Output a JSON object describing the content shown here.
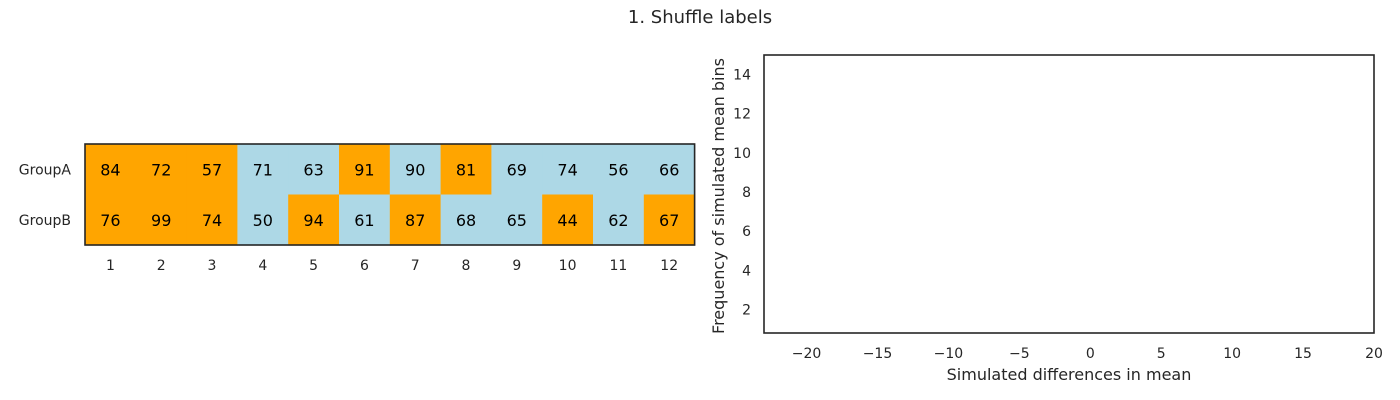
{
  "title": "1. Shuffle labels",
  "colors": {
    "orange": "#ffa500",
    "lightblue": "#add8e6",
    "frame": "#262626",
    "text": "#262626"
  },
  "chart_data": [
    {
      "type": "table",
      "rows": [
        "GroupA",
        "GroupB"
      ],
      "columns": [
        "1",
        "2",
        "3",
        "4",
        "5",
        "6",
        "7",
        "8",
        "9",
        "10",
        "11",
        "12"
      ],
      "values": [
        [
          84,
          72,
          57,
          71,
          63,
          91,
          90,
          81,
          69,
          74,
          56,
          66
        ],
        [
          76,
          99,
          74,
          50,
          94,
          61,
          87,
          68,
          65,
          44,
          62,
          67
        ]
      ],
      "cell_colors": [
        [
          "orange",
          "orange",
          "orange",
          "lightblue",
          "lightblue",
          "orange",
          "lightblue",
          "orange",
          "lightblue",
          "lightblue",
          "lightblue",
          "lightblue"
        ],
        [
          "orange",
          "orange",
          "orange",
          "lightblue",
          "orange",
          "lightblue",
          "orange",
          "lightblue",
          "lightblue",
          "orange",
          "lightblue",
          "orange"
        ]
      ]
    },
    {
      "type": "bar",
      "xlabel": "Simulated differences in mean",
      "ylabel": "Frequency of simulated mean bins",
      "xlim": [
        -23,
        20
      ],
      "ylim": [
        0.8,
        15
      ],
      "xticks": [
        -20,
        -15,
        -10,
        -5,
        0,
        5,
        10,
        15,
        20
      ],
      "yticks": [
        2,
        4,
        6,
        8,
        10,
        12,
        14
      ],
      "values": [],
      "grid": false
    }
  ]
}
